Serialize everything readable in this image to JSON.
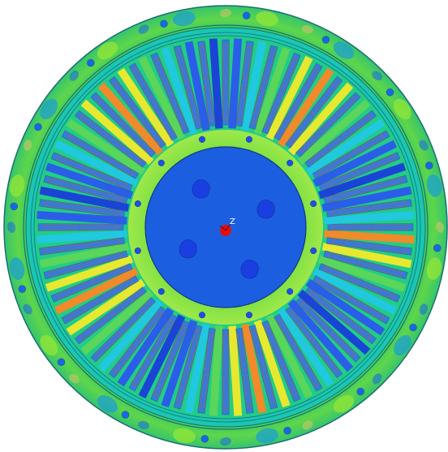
{
  "view": {
    "background": "#ffffff",
    "origin_marker_label": "Z"
  },
  "geometry": {
    "stator_slots": 48,
    "rotor_poles": 4,
    "frame_bolts": 16,
    "rotor_bolts": 12
  },
  "colors": {
    "outline": "#1a6e72",
    "frame_base": "#2ec86a",
    "frame_hot": "#8ee53a",
    "frame_cool": "#1fa3c8",
    "frame_cold": "#1966e6",
    "frame_warm": "#d8c26a",
    "yoke": "#19c7b3",
    "yoke_inner": "#0fb2c4",
    "slot_bg": "#17bfd0",
    "coil_fill": "#3b78d8",
    "coil_outline": "#8a6d6d",
    "tooth_colors": [
      "#f08a2a",
      "#e8e830",
      "#5ad65a",
      "#20c8e0",
      "#2a5ee8",
      "#1a44d6"
    ],
    "airgap_ring": "#6fdd3e",
    "bore_glow": "#9fe84a",
    "rotor": "#1b5fe0",
    "rotor_edge": "#11358a",
    "rotor_magnets": "#1a3fe0",
    "rotor_bolt": "#1f4fe6",
    "shaft_marker": "#e01010"
  }
}
